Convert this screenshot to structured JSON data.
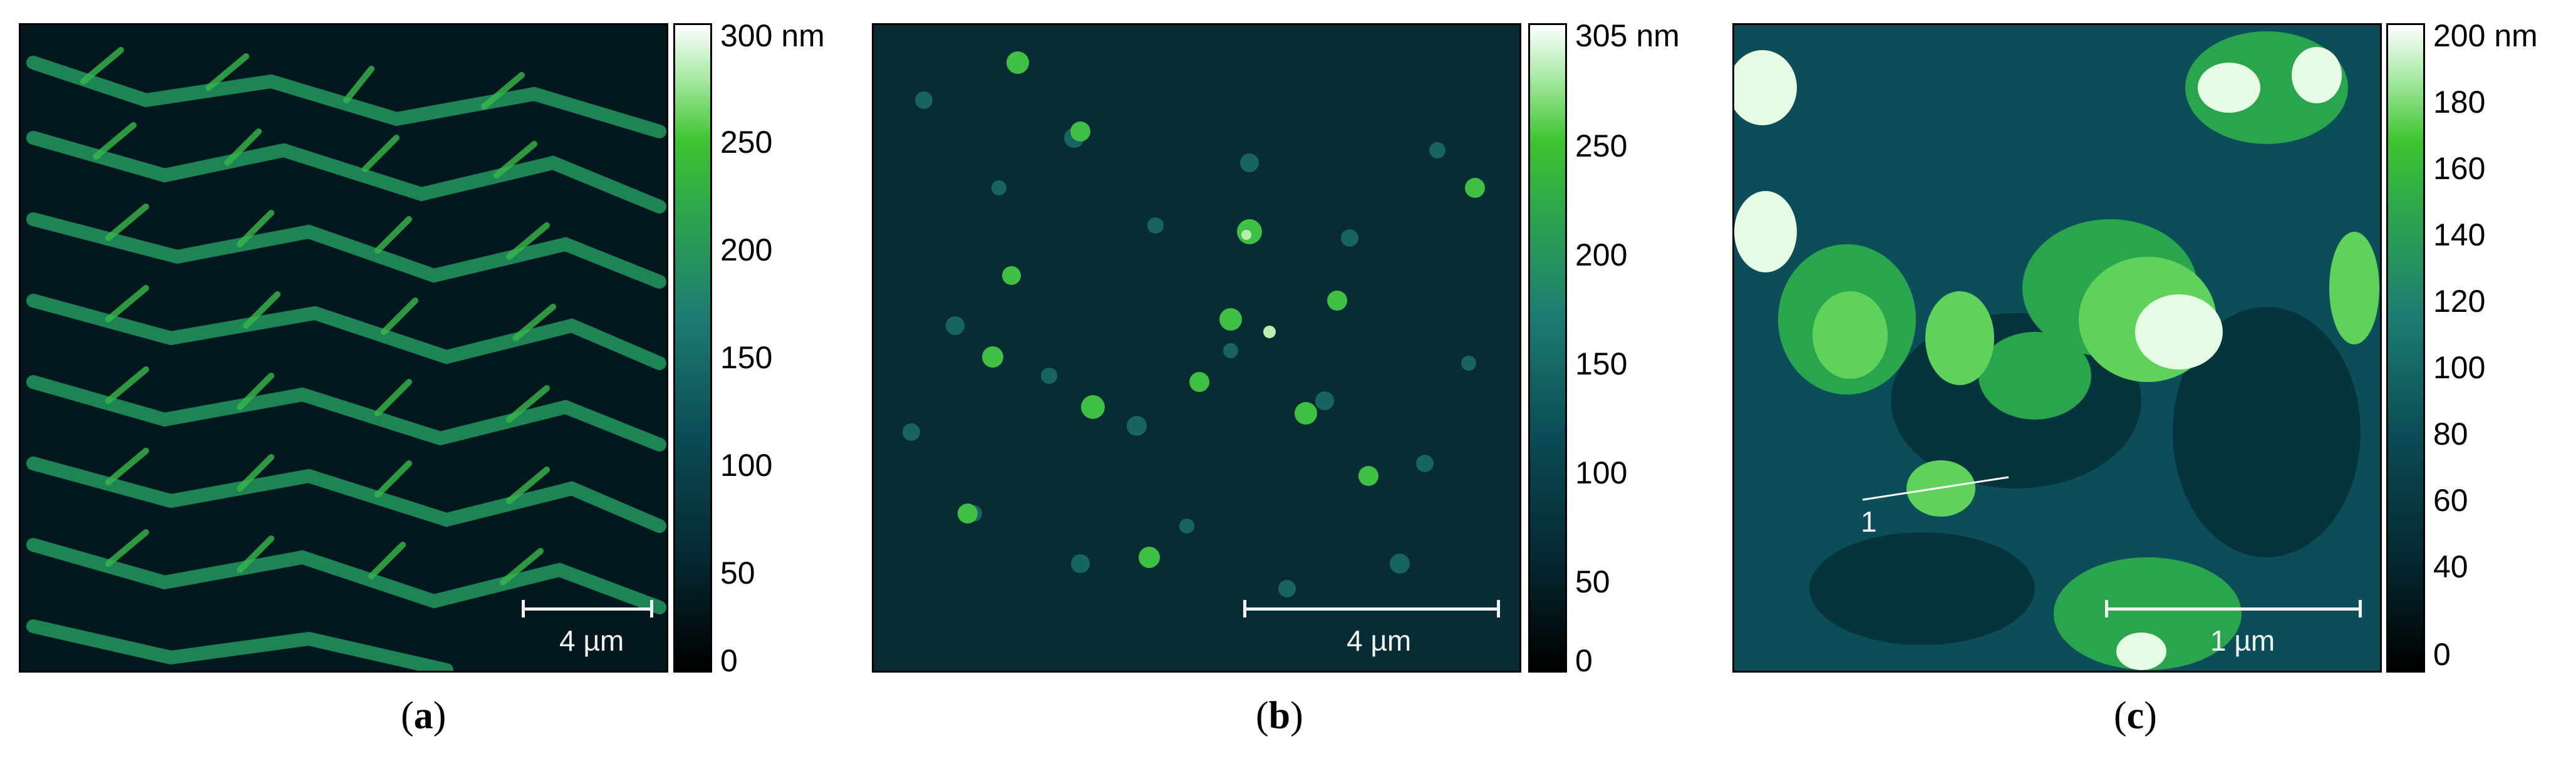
{
  "panels": [
    {
      "label": "a",
      "colorbar_unit_label": "300 nm",
      "colorbar_ticks": [
        "250",
        "200",
        "150",
        "100",
        "50",
        "0"
      ],
      "scale_bar_label": "4 µm"
    },
    {
      "label": "b",
      "colorbar_unit_label": "305 nm",
      "colorbar_ticks": [
        "250",
        "200",
        "150",
        "100",
        "50",
        "0"
      ],
      "scale_bar_label": "4 µm"
    },
    {
      "label": "c",
      "colorbar_unit_label": "200 nm",
      "colorbar_ticks": [
        "180",
        "160",
        "140",
        "120",
        "100",
        "80",
        "60",
        "40",
        "0"
      ],
      "scale_bar_label": "1 µm",
      "profile_marker": "1"
    }
  ],
  "colors": {
    "background": "#03141a",
    "low": "#0a4b55",
    "mid": "#2ea84a",
    "high": "#ffffff"
  }
}
